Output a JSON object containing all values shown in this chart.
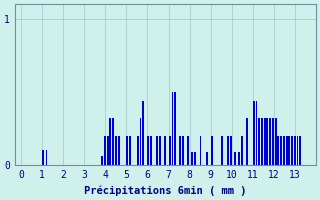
{
  "title": "",
  "xlabel": "Précipitations 6min ( mm )",
  "ylabel": "",
  "background_color": "#cff0eb",
  "bar_color": "#0000cc",
  "grid_color": "#a0c8c8",
  "axis_color": "#7090a0",
  "text_color": "#000080",
  "ylim": [
    0,
    1.1
  ],
  "xlim": [
    -0.3,
    14.0
  ],
  "yticks": [
    0,
    1
  ],
  "xticks": [
    0,
    1,
    2,
    3,
    4,
    5,
    6,
    7,
    8,
    9,
    10,
    11,
    12,
    13
  ],
  "bar_width": 0.09,
  "values": [
    [
      1.05,
      0.1
    ],
    [
      1.2,
      0.1
    ],
    [
      3.85,
      0.06
    ],
    [
      3.98,
      0.2
    ],
    [
      4.11,
      0.2
    ],
    [
      4.24,
      0.32
    ],
    [
      4.37,
      0.32
    ],
    [
      4.5,
      0.2
    ],
    [
      4.63,
      0.2
    ],
    [
      5.02,
      0.2
    ],
    [
      5.15,
      0.2
    ],
    [
      5.54,
      0.2
    ],
    [
      5.67,
      0.32
    ],
    [
      5.8,
      0.44
    ],
    [
      6.02,
      0.2
    ],
    [
      6.15,
      0.2
    ],
    [
      6.45,
      0.2
    ],
    [
      6.58,
      0.2
    ],
    [
      6.84,
      0.2
    ],
    [
      7.06,
      0.2
    ],
    [
      7.19,
      0.5
    ],
    [
      7.32,
      0.5
    ],
    [
      7.54,
      0.2
    ],
    [
      7.67,
      0.2
    ],
    [
      7.93,
      0.2
    ],
    [
      8.12,
      0.09
    ],
    [
      8.25,
      0.09
    ],
    [
      8.52,
      0.2
    ],
    [
      8.82,
      0.09
    ],
    [
      9.05,
      0.2
    ],
    [
      9.52,
      0.2
    ],
    [
      9.82,
      0.2
    ],
    [
      9.95,
      0.2
    ],
    [
      10.15,
      0.09
    ],
    [
      10.35,
      0.09
    ],
    [
      10.48,
      0.2
    ],
    [
      10.74,
      0.32
    ],
    [
      11.05,
      0.44
    ],
    [
      11.18,
      0.44
    ],
    [
      11.31,
      0.32
    ],
    [
      11.44,
      0.32
    ],
    [
      11.57,
      0.32
    ],
    [
      11.7,
      0.32
    ],
    [
      11.83,
      0.32
    ],
    [
      11.96,
      0.32
    ],
    [
      12.09,
      0.32
    ],
    [
      12.22,
      0.2
    ],
    [
      12.35,
      0.2
    ],
    [
      12.48,
      0.2
    ],
    [
      12.61,
      0.2
    ],
    [
      12.74,
      0.2
    ],
    [
      12.87,
      0.2
    ],
    [
      13.0,
      0.2
    ],
    [
      13.13,
      0.2
    ],
    [
      13.26,
      0.2
    ]
  ]
}
